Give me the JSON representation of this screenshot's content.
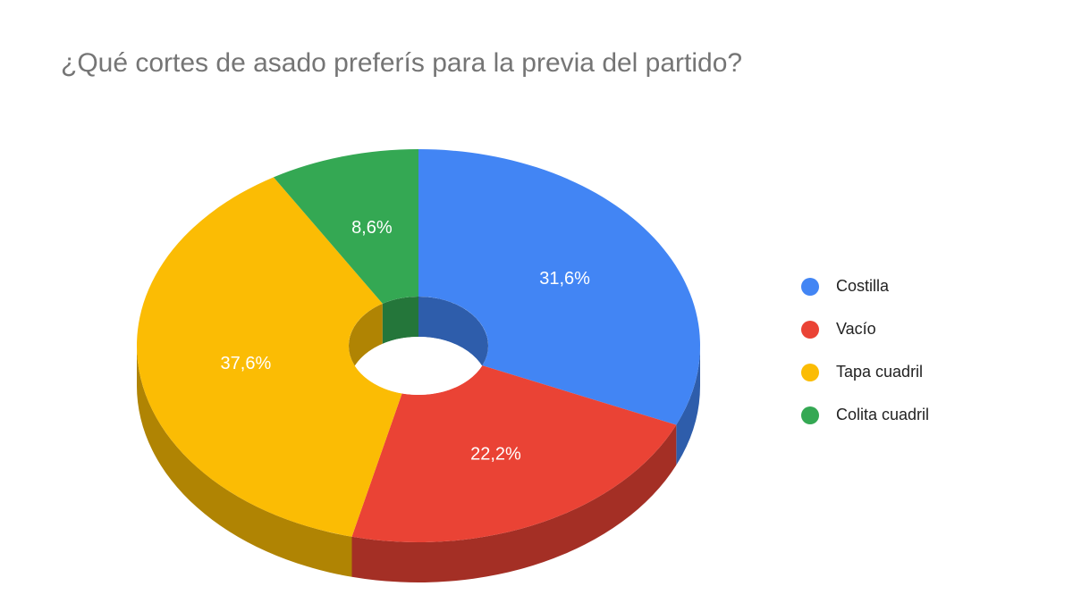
{
  "chart_data": {
    "type": "pie",
    "title": "¿Qué cortes de asado preferís para la previa del partido?",
    "categories": [
      "Costilla",
      "Vacío",
      "Tapa cuadril",
      "Colita cuadril"
    ],
    "values": [
      31.6,
      22.2,
      37.6,
      8.6
    ],
    "value_labels": [
      "31,6%",
      "22,2%",
      "37,6%",
      "8,6%"
    ],
    "colors": [
      "#4285f4",
      "#ea4335",
      "#fbbc04",
      "#34a853"
    ],
    "legend": "right"
  }
}
